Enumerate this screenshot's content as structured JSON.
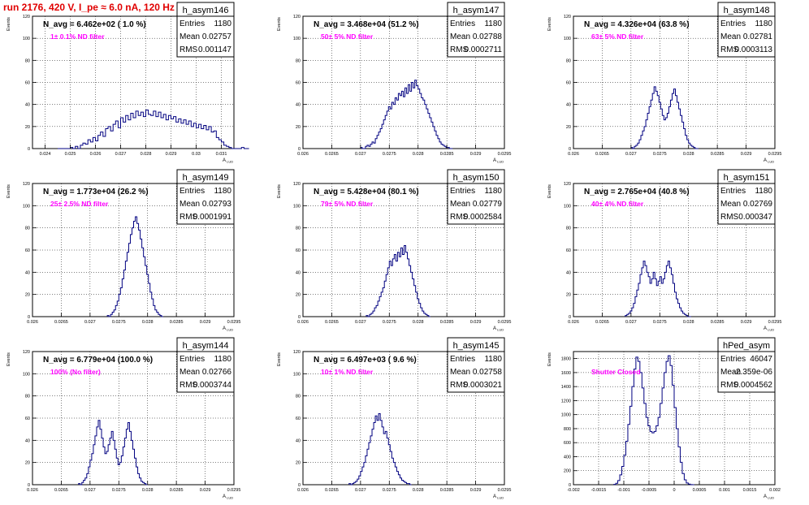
{
  "page_title": "run 2176,   420 V, I_pe ≈ 6.0 nA, 120 Hz",
  "colors": {
    "title": "#e00000",
    "annotation": "#ff00ff",
    "histogram": "#000080",
    "axis": "#000000",
    "grid": "#000000",
    "background": "#ffffff"
  },
  "chart_data": [
    {
      "type": "histogram",
      "name": "h_asym146",
      "header": "N_avg = 6.462e+02 ( 1.0 %)",
      "annotation": "1± 0.1% ND filter",
      "stats": [
        {
          "label": "Entries",
          "value": "1180"
        },
        {
          "label": "Mean",
          "value": "0.02757"
        },
        {
          "label": "RMS",
          "value": "0.001147"
        }
      ],
      "ylabel": "Events",
      "xlabel": "A_LUD",
      "xlim": [
        0.0235,
        0.0315
      ],
      "ylim": [
        0,
        120
      ],
      "xticks": [
        0.024,
        0.025,
        0.026,
        0.027,
        0.028,
        0.029,
        0.03,
        0.031
      ],
      "xticklabels": [
        "0.024",
        "0.025",
        "0.026",
        "0.027",
        "0.028",
        "0.029",
        "0.03",
        "0.031"
      ],
      "yticks": [
        0,
        20,
        40,
        60,
        80,
        100,
        120
      ],
      "yticklabels": [
        "0",
        "20",
        "40",
        "60",
        "80",
        "100",
        "120"
      ],
      "grid": true,
      "bin_start": 0.0245,
      "bin_width": 0.0001,
      "counts": [
        0,
        0,
        0,
        0,
        0,
        1,
        0,
        2,
        0,
        3,
        5,
        4,
        8,
        6,
        10,
        7,
        12,
        15,
        11,
        18,
        20,
        16,
        22,
        25,
        19,
        28,
        24,
        30,
        26,
        32,
        28,
        34,
        30,
        33,
        29,
        35,
        31,
        30,
        34,
        29,
        33,
        28,
        31,
        26,
        30,
        27,
        29,
        24,
        27,
        23,
        26,
        22,
        25,
        20,
        23,
        19,
        22,
        18,
        21,
        17,
        20,
        15,
        16,
        10,
        8,
        6,
        3,
        2,
        1,
        0,
        0,
        0,
        0,
        1,
        0,
        0
      ]
    },
    {
      "type": "histogram",
      "name": "h_asym147",
      "header": "N_avg = 3.468e+04 (51.2 %)",
      "annotation": "50± 5% ND filter",
      "stats": [
        {
          "label": "Entries",
          "value": "1180"
        },
        {
          "label": "Mean",
          "value": "0.02788"
        },
        {
          "label": "RMS",
          "value": "0.0002711"
        }
      ],
      "ylabel": "Events",
      "xlabel": "A_LUD",
      "xlim": [
        0.026,
        0.0295
      ],
      "ylim": [
        0,
        120
      ],
      "xticks": [
        0.026,
        0.0265,
        0.027,
        0.0275,
        0.028,
        0.0285,
        0.029,
        0.0295
      ],
      "xticklabels": [
        "0.026",
        "0.0265",
        "0.027",
        "0.0275",
        "0.028",
        "0.0285",
        "0.029",
        "0.0295"
      ],
      "yticks": [
        0,
        20,
        40,
        60,
        80,
        100,
        120
      ],
      "yticklabels": [
        "0",
        "20",
        "40",
        "60",
        "80",
        "100",
        "120"
      ],
      "grid": true,
      "bin_start": 0.027,
      "bin_width": 2.857e-05,
      "counts": [
        1,
        0,
        0,
        2,
        3,
        2,
        4,
        6,
        5,
        9,
        12,
        15,
        18,
        22,
        26,
        30,
        34,
        38,
        36,
        42,
        40,
        46,
        44,
        50,
        48,
        52,
        47,
        55,
        50,
        58,
        52,
        60,
        55,
        62,
        57,
        54,
        50,
        46,
        44,
        40,
        36,
        32,
        28,
        24,
        20,
        16,
        12,
        9,
        6,
        4,
        3,
        2,
        1,
        1,
        0,
        0
      ]
    },
    {
      "type": "histogram",
      "name": "h_asym148",
      "header": "N_avg = 4.326e+04 (63.8 %)",
      "annotation": "63± 5% ND filter",
      "stats": [
        {
          "label": "Entries",
          "value": "1180"
        },
        {
          "label": "Mean",
          "value": "0.02781"
        },
        {
          "label": "RMS",
          "value": "0.0003113"
        }
      ],
      "ylabel": "Events",
      "xlabel": "A_LUD",
      "xlim": [
        0.026,
        0.0295
      ],
      "ylim": [
        0,
        120
      ],
      "xticks": [
        0.026,
        0.0265,
        0.027,
        0.0275,
        0.028,
        0.0285,
        0.029,
        0.0295
      ],
      "xticklabels": [
        "0.026",
        "0.0265",
        "0.027",
        "0.0275",
        "0.028",
        "0.0285",
        "0.029",
        "0.0295"
      ],
      "yticks": [
        0,
        20,
        40,
        60,
        80,
        100,
        120
      ],
      "yticklabels": [
        "0",
        "20",
        "40",
        "60",
        "80",
        "100",
        "120"
      ],
      "grid": true,
      "bin_start": 0.027,
      "bin_width": 2.857e-05,
      "counts": [
        1,
        0,
        2,
        3,
        5,
        8,
        12,
        16,
        20,
        26,
        32,
        38,
        44,
        50,
        56,
        52,
        48,
        42,
        36,
        30,
        26,
        28,
        32,
        38,
        44,
        50,
        54,
        48,
        42,
        36,
        30,
        24,
        18,
        12,
        8,
        5,
        3,
        2,
        1,
        0,
        0
      ]
    },
    {
      "type": "histogram",
      "name": "h_asym149",
      "header": "N_avg = 1.773e+04 (26.2 %)",
      "annotation": "25± 2.5% ND filter",
      "stats": [
        {
          "label": "Entries",
          "value": "1180"
        },
        {
          "label": "Mean",
          "value": "0.02793"
        },
        {
          "label": "RMS",
          "value": "0.0001991"
        }
      ],
      "ylabel": "Events",
      "xlabel": "A_LUD",
      "xlim": [
        0.026,
        0.0295
      ],
      "ylim": [
        0,
        120
      ],
      "xticks": [
        0.026,
        0.0265,
        0.027,
        0.0275,
        0.028,
        0.0285,
        0.029,
        0.0295
      ],
      "xticklabels": [
        "0.026",
        "0.0265",
        "0.027",
        "0.0275",
        "0.028",
        "0.0285",
        "0.029",
        "0.0295"
      ],
      "yticks": [
        0,
        20,
        40,
        60,
        80,
        100,
        120
      ],
      "yticklabels": [
        "0",
        "20",
        "40",
        "60",
        "80",
        "100",
        "120"
      ],
      "grid": true,
      "bin_start": 0.0273,
      "bin_width": 2.857e-05,
      "counts": [
        1,
        0,
        2,
        4,
        6,
        10,
        14,
        20,
        26,
        34,
        42,
        50,
        58,
        66,
        74,
        80,
        86,
        90,
        84,
        78,
        70,
        62,
        54,
        46,
        38,
        30,
        22,
        16,
        10,
        6,
        4,
        2,
        1,
        0
      ]
    },
    {
      "type": "histogram",
      "name": "h_asym150",
      "header": "N_avg = 5.428e+04 (80.1 %)",
      "annotation": "79± 5% ND filter",
      "stats": [
        {
          "label": "Entries",
          "value": "1180"
        },
        {
          "label": "Mean",
          "value": "0.02779"
        },
        {
          "label": "RMS",
          "value": "0.0002584"
        }
      ],
      "ylabel": "Events",
      "xlabel": "A_LUD",
      "xlim": [
        0.026,
        0.0295
      ],
      "ylim": [
        0,
        120
      ],
      "xticks": [
        0.026,
        0.0265,
        0.027,
        0.0275,
        0.028,
        0.0285,
        0.029,
        0.0295
      ],
      "xticklabels": [
        "0.026",
        "0.0265",
        "0.027",
        "0.0275",
        "0.028",
        "0.0285",
        "0.029",
        "0.0295"
      ],
      "yticks": [
        0,
        20,
        40,
        60,
        80,
        100,
        120
      ],
      "yticklabels": [
        "0",
        "20",
        "40",
        "60",
        "80",
        "100",
        "120"
      ],
      "grid": true,
      "bin_start": 0.0271,
      "bin_width": 2.857e-05,
      "counts": [
        1,
        0,
        2,
        3,
        5,
        8,
        10,
        14,
        18,
        22,
        26,
        32,
        38,
        44,
        50,
        46,
        52,
        56,
        50,
        58,
        54,
        62,
        56,
        64,
        58,
        52,
        46,
        40,
        34,
        28,
        22,
        16,
        12,
        8,
        5,
        3,
        2,
        1,
        0
      ]
    },
    {
      "type": "histogram",
      "name": "h_asym151",
      "header": "N_avg = 2.765e+04 (40.8 %)",
      "annotation": "40± 4% ND filter",
      "stats": [
        {
          "label": "Entries",
          "value": "1180"
        },
        {
          "label": "Mean",
          "value": "0.02769"
        },
        {
          "label": "RMS",
          "value": "0.000347"
        }
      ],
      "ylabel": "Events",
      "xlabel": "A_LUD",
      "xlim": [
        0.026,
        0.0295
      ],
      "ylim": [
        0,
        120
      ],
      "xticks": [
        0.026,
        0.0265,
        0.027,
        0.0275,
        0.028,
        0.0285,
        0.029,
        0.0295
      ],
      "xticklabels": [
        "0.026",
        "0.0265",
        "0.027",
        "0.0275",
        "0.028",
        "0.0285",
        "0.029",
        "0.0295"
      ],
      "yticks": [
        0,
        20,
        40,
        60,
        80,
        100,
        120
      ],
      "yticklabels": [
        "0",
        "20",
        "40",
        "60",
        "80",
        "100",
        "120"
      ],
      "grid": true,
      "bin_start": 0.0269,
      "bin_width": 2.857e-05,
      "counts": [
        1,
        2,
        3,
        5,
        8,
        12,
        18,
        24,
        30,
        38,
        44,
        50,
        46,
        40,
        36,
        30,
        34,
        40,
        34,
        28,
        32,
        36,
        30,
        34,
        40,
        46,
        50,
        44,
        38,
        30,
        22,
        16,
        12,
        8,
        5,
        3,
        2,
        1,
        0,
        0
      ]
    },
    {
      "type": "histogram",
      "name": "h_asym144",
      "header": "N_avg = 6.779e+04 (100.0 %)",
      "annotation": "100% (No filter)",
      "stats": [
        {
          "label": "Entries",
          "value": "1180"
        },
        {
          "label": "Mean",
          "value": "0.02766"
        },
        {
          "label": "RMS",
          "value": "0.0003744"
        }
      ],
      "ylabel": "Events",
      "xlabel": "A_LUD",
      "xlim": [
        0.026,
        0.0295
      ],
      "ylim": [
        0,
        120
      ],
      "xticks": [
        0.026,
        0.0265,
        0.027,
        0.0275,
        0.028,
        0.0285,
        0.029,
        0.0295
      ],
      "xticklabels": [
        "0.026",
        "0.0265",
        "0.027",
        "0.0275",
        "0.028",
        "0.0285",
        "0.029",
        "0.0295"
      ],
      "yticks": [
        0,
        20,
        40,
        60,
        80,
        100,
        120
      ],
      "yticklabels": [
        "0",
        "20",
        "40",
        "60",
        "80",
        "100",
        "120"
      ],
      "grid": true,
      "bin_start": 0.0268,
      "bin_width": 2.857e-05,
      "counts": [
        1,
        0,
        2,
        4,
        6,
        10,
        16,
        22,
        28,
        36,
        44,
        52,
        58,
        50,
        42,
        34,
        28,
        30,
        36,
        42,
        48,
        40,
        32,
        24,
        18,
        20,
        26,
        34,
        42,
        50,
        56,
        48,
        40,
        32,
        24,
        16,
        10,
        6,
        3,
        2,
        1,
        0
      ]
    },
    {
      "type": "histogram",
      "name": "h_asym145",
      "header": "N_avg = 6.497e+03 ( 9.6 %)",
      "annotation": "10± 1% ND filter",
      "stats": [
        {
          "label": "Entries",
          "value": "1180"
        },
        {
          "label": "Mean",
          "value": "0.02758"
        },
        {
          "label": "RMS",
          "value": "0.0003021"
        }
      ],
      "ylabel": "Events",
      "xlabel": "A_LUD",
      "xlim": [
        0.026,
        0.0295
      ],
      "ylim": [
        0,
        120
      ],
      "xticks": [
        0.026,
        0.0265,
        0.027,
        0.0275,
        0.028,
        0.0285,
        0.029,
        0.0295
      ],
      "xticklabels": [
        "0.026",
        "0.0265",
        "0.027",
        "0.0275",
        "0.028",
        "0.0285",
        "0.029",
        "0.0295"
      ],
      "yticks": [
        0,
        20,
        40,
        60,
        80,
        100,
        120
      ],
      "yticklabels": [
        "0",
        "20",
        "40",
        "60",
        "80",
        "100",
        "120"
      ],
      "grid": true,
      "bin_start": 0.0268,
      "bin_width": 2.857e-05,
      "counts": [
        1,
        0,
        1,
        2,
        3,
        5,
        8,
        12,
        16,
        20,
        26,
        32,
        38,
        44,
        50,
        56,
        62,
        58,
        64,
        58,
        52,
        46,
        48,
        42,
        36,
        30,
        24,
        20,
        16,
        12,
        9,
        6,
        4,
        3,
        2,
        1,
        1,
        0
      ]
    },
    {
      "type": "histogram",
      "name": "hPed_asym",
      "header": "",
      "annotation": "Shutter Closed",
      "stats": [
        {
          "label": "Entries",
          "value": "46047"
        },
        {
          "label": "Mean",
          "value": "-2.359e-06"
        },
        {
          "label": "RMS",
          "value": "0.0004562"
        }
      ],
      "ylabel": "Events",
      "xlabel": "A_LUD",
      "xlim": [
        -0.002,
        0.002
      ],
      "ylim": [
        0,
        1900
      ],
      "xticks": [
        -0.002,
        -0.0015,
        -0.001,
        -0.0005,
        0,
        0.0005,
        0.001,
        0.0015,
        0.002
      ],
      "xticklabels": [
        "-0.002",
        "-0.0015",
        "-0.001",
        "-0.0005",
        "0",
        "0.0005",
        "0.001",
        "0.0015",
        "0.002"
      ],
      "yticks": [
        0,
        200,
        400,
        600,
        800,
        1000,
        1200,
        1400,
        1600,
        1800
      ],
      "yticklabels": [
        "0",
        "200",
        "400",
        "600",
        "800",
        "1000",
        "1200",
        "1400",
        "1600",
        "1800"
      ],
      "grid": true,
      "bin_start": -0.0012,
      "bin_width": 4e-05,
      "counts": [
        5,
        20,
        60,
        140,
        260,
        420,
        620,
        860,
        1120,
        1400,
        1650,
        1820,
        1760,
        1600,
        1380,
        1160,
        960,
        840,
        760,
        740,
        760,
        840,
        960,
        1160,
        1380,
        1600,
        1760,
        1840,
        1700,
        1420,
        1100,
        800,
        540,
        320,
        160,
        70,
        25,
        8,
        2,
        0
      ]
    }
  ]
}
